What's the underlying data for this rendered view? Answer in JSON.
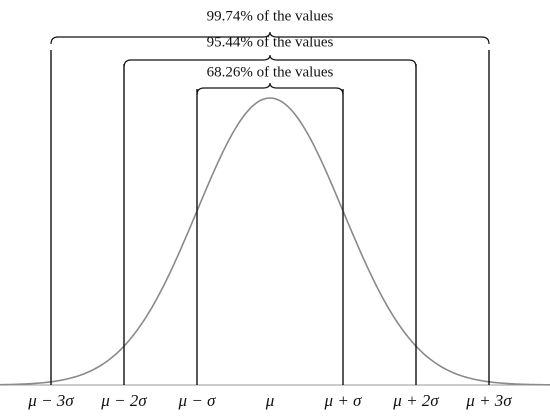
{
  "brackets": [
    {
      "label": "99.74% of the values"
    },
    {
      "label": "95.44% of the values"
    },
    {
      "label": "68.26% of the values"
    }
  ],
  "axis_labels": [
    "μ − 3σ",
    "μ − 2σ",
    "μ − σ",
    "μ",
    "μ + σ",
    "μ + 2σ",
    "μ + 3σ"
  ]
}
